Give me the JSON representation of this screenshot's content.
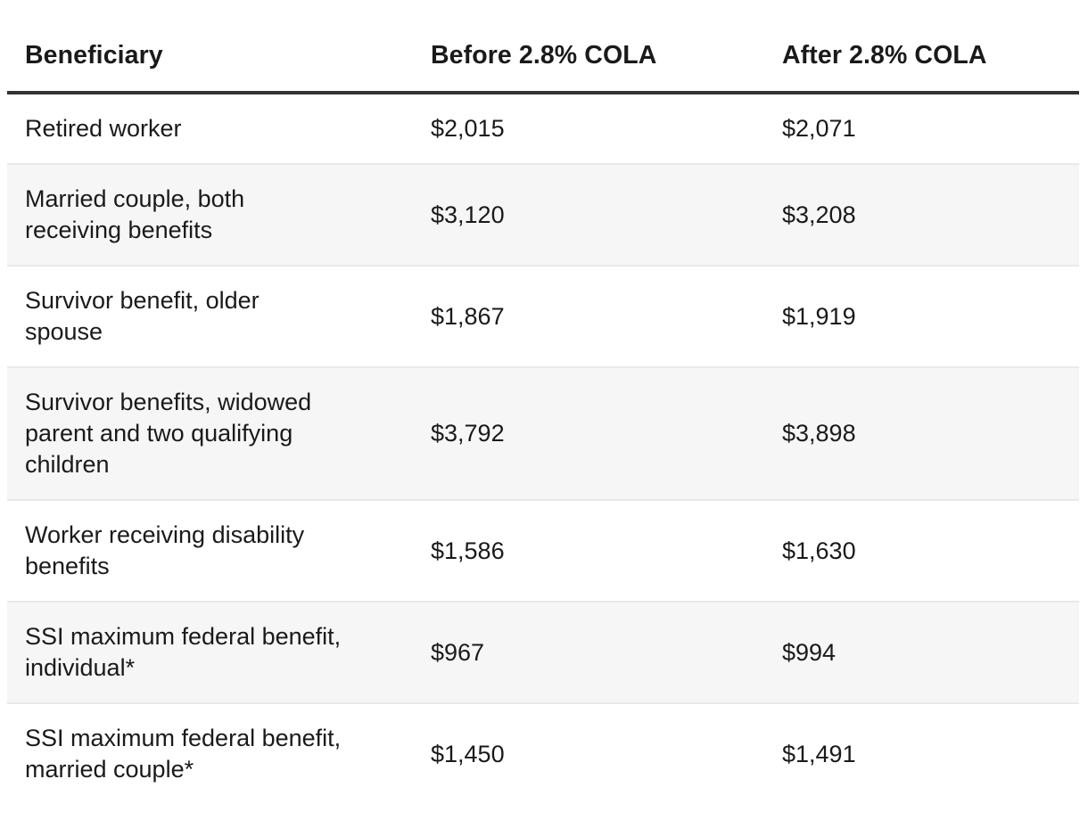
{
  "table": {
    "header": {
      "beneficiary": "Beneficiary",
      "before": "Before 2.8% COLA",
      "after": "After 2.8% COLA"
    },
    "rows": [
      {
        "beneficiary": "Retired worker",
        "before": "$2,015",
        "after": "$2,071"
      },
      {
        "beneficiary": "Married couple, both\nreceiving benefits",
        "before": "$3,120",
        "after": "$3,208"
      },
      {
        "beneficiary": "Survivor benefit, older\nspouse",
        "before": "$1,867",
        "after": "$1,919"
      },
      {
        "beneficiary": "Survivor benefits, widowed\nparent and two qualifying\nchildren",
        "before": "$3,792",
        "after": "$3,898"
      },
      {
        "beneficiary": "Worker receiving disability\nbenefits",
        "before": "$1,586",
        "after": "$1,630"
      },
      {
        "beneficiary": "SSI maximum federal benefit,\nindividual*",
        "before": "$967",
        "after": "$994"
      },
      {
        "beneficiary": "SSI maximum federal benefit,\nmarried couple*",
        "before": "$1,450",
        "after": "$1,491"
      }
    ],
    "colors": {
      "text": "#1a1a1a",
      "header_rule": "#333333",
      "row_stripe": "#f6f6f6",
      "row_border": "#e9e9e9",
      "background": "#ffffff"
    }
  },
  "chart_data": {
    "type": "table",
    "title": "",
    "columns": [
      "Beneficiary",
      "Before 2.8% COLA",
      "After 2.8% COLA"
    ],
    "categories": [
      "Retired worker",
      "Married couple, both receiving benefits",
      "Survivor benefit, older spouse",
      "Survivor benefits, widowed parent and two qualifying children",
      "Worker receiving disability benefits",
      "SSI maximum federal benefit, individual*",
      "SSI maximum federal benefit, married couple*"
    ],
    "series": [
      {
        "name": "Before 2.8% COLA",
        "values": [
          2015,
          3120,
          1867,
          3792,
          1586,
          967,
          1450
        ]
      },
      {
        "name": "After 2.8% COLA",
        "values": [
          2071,
          3208,
          1919,
          3898,
          1630,
          994,
          1491
        ]
      }
    ],
    "layout_hints": {
      "zebra_striping": true,
      "header_rule": true,
      "value_format": "$#,###"
    }
  }
}
